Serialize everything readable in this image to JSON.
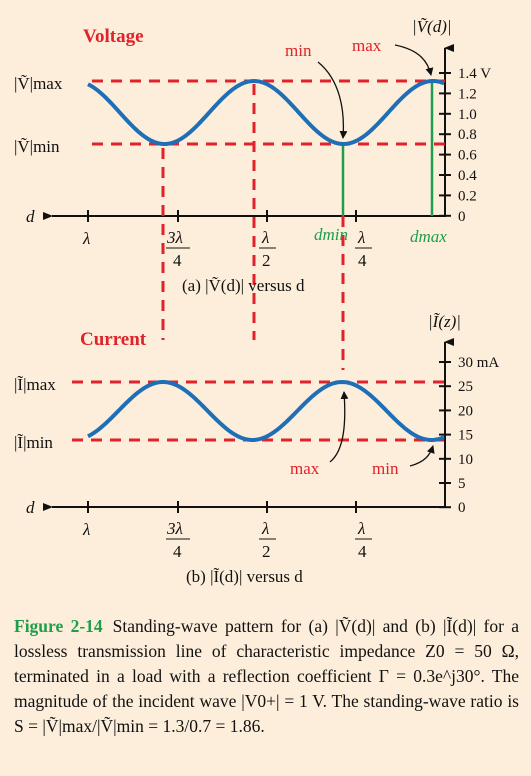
{
  "panel_a": {
    "title": "Voltage",
    "y_axis_label": "|Ṽ(d)|",
    "x_axis_label": "d",
    "y_ticks": [
      "1.4 V",
      "1.2",
      "1.0",
      "0.8",
      "0.6",
      "0.4",
      "0.2",
      "0"
    ],
    "max_label": "|Ṽ|max",
    "min_label": "|Ṽ|min",
    "x_ticks": {
      "lambda": "λ",
      "three_quarter_num": "3λ",
      "three_quarter_den": "4",
      "half_num": "λ",
      "half_den": "2",
      "quarter_num": "λ",
      "quarter_den": "4"
    },
    "annotation_min": "min",
    "annotation_max": "max",
    "dmin": "dmin",
    "dmax": "dmax",
    "caption": "(a)  |Ṽ(d)| versus d",
    "max_value": 1.3,
    "min_value": 0.7
  },
  "panel_b": {
    "title": "Current",
    "y_axis_label": "|Ĩ(z)|",
    "x_axis_label": "d",
    "y_ticks": [
      "30 mA",
      "25",
      "20",
      "15",
      "10",
      "5",
      "0"
    ],
    "max_label": "|Ĩ|max",
    "min_label": "|Ĩ|min",
    "annotation_max": "max",
    "annotation_min": "min",
    "caption": "(b)  |Ĩ(d)| versus d",
    "max_value": 26,
    "min_value": 14
  },
  "caption": {
    "label": "Figure 2-14",
    "text": "Standing-wave pattern for (a) |Ṽ(d)| and (b) |Ĩ(d)| for a lossless transmission line of characteristic impedance Z0 = 50 Ω, terminated in a load with a reflection coefficient Γ = 0.3e^j30°. The magnitude of the incident wave |V0+| = 1 V. The standing-wave ratio is S = |Ṽ|max/|Ṽ|min = 1.3/0.7 = 1.86."
  },
  "colors": {
    "curve": "#1f6fb7",
    "dash": "#e0232a",
    "green": "#1e9e4a",
    "background": "#fdeedb"
  }
}
